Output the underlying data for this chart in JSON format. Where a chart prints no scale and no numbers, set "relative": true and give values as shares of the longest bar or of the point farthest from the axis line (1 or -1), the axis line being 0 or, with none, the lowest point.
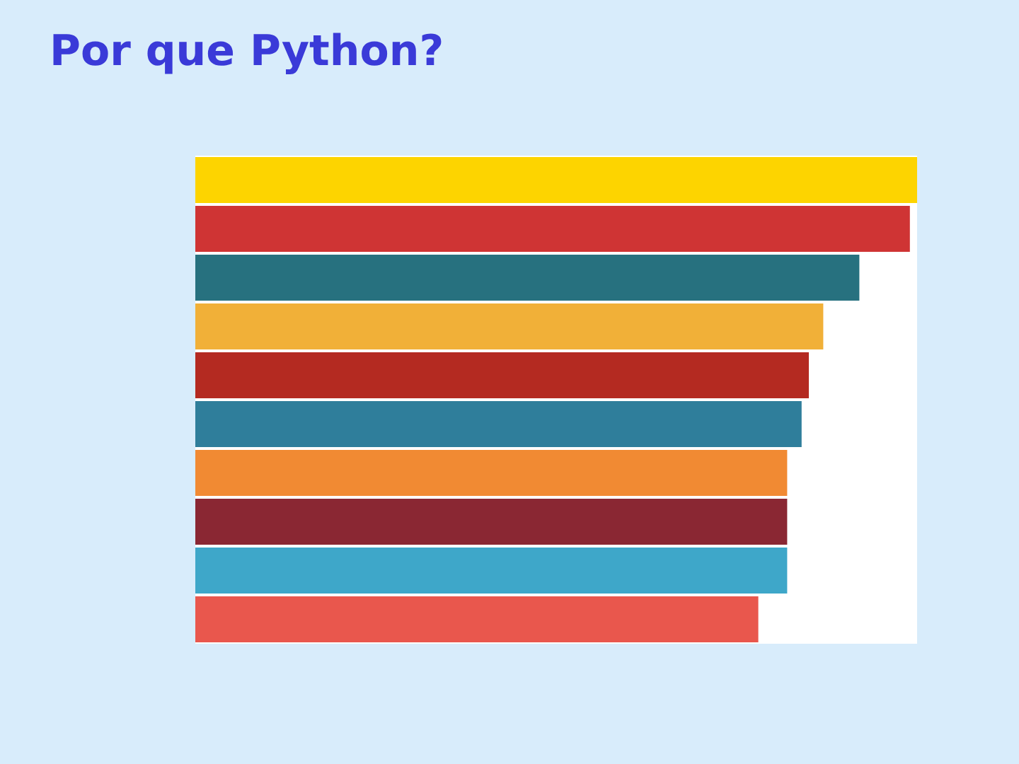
{
  "chart_data": {
    "type": "bar",
    "orientation": "horizontal",
    "relative": true,
    "title": "Por que Python?",
    "categories": [
      null,
      null,
      null,
      null,
      null,
      null,
      null,
      null,
      null,
      null
    ],
    "values": [
      1,
      0.99,
      0.92,
      0.87,
      0.85,
      0.84,
      0.82,
      0.82,
      0.82,
      0.78
    ],
    "colors": [
      "#fdd400",
      "#cf3434",
      "#27717f",
      "#f1b038",
      "#b42a21",
      "#2f7e9b",
      "#f18a33",
      "#8a2733",
      "#3ea7c9",
      "#e9574d"
    ]
  }
}
